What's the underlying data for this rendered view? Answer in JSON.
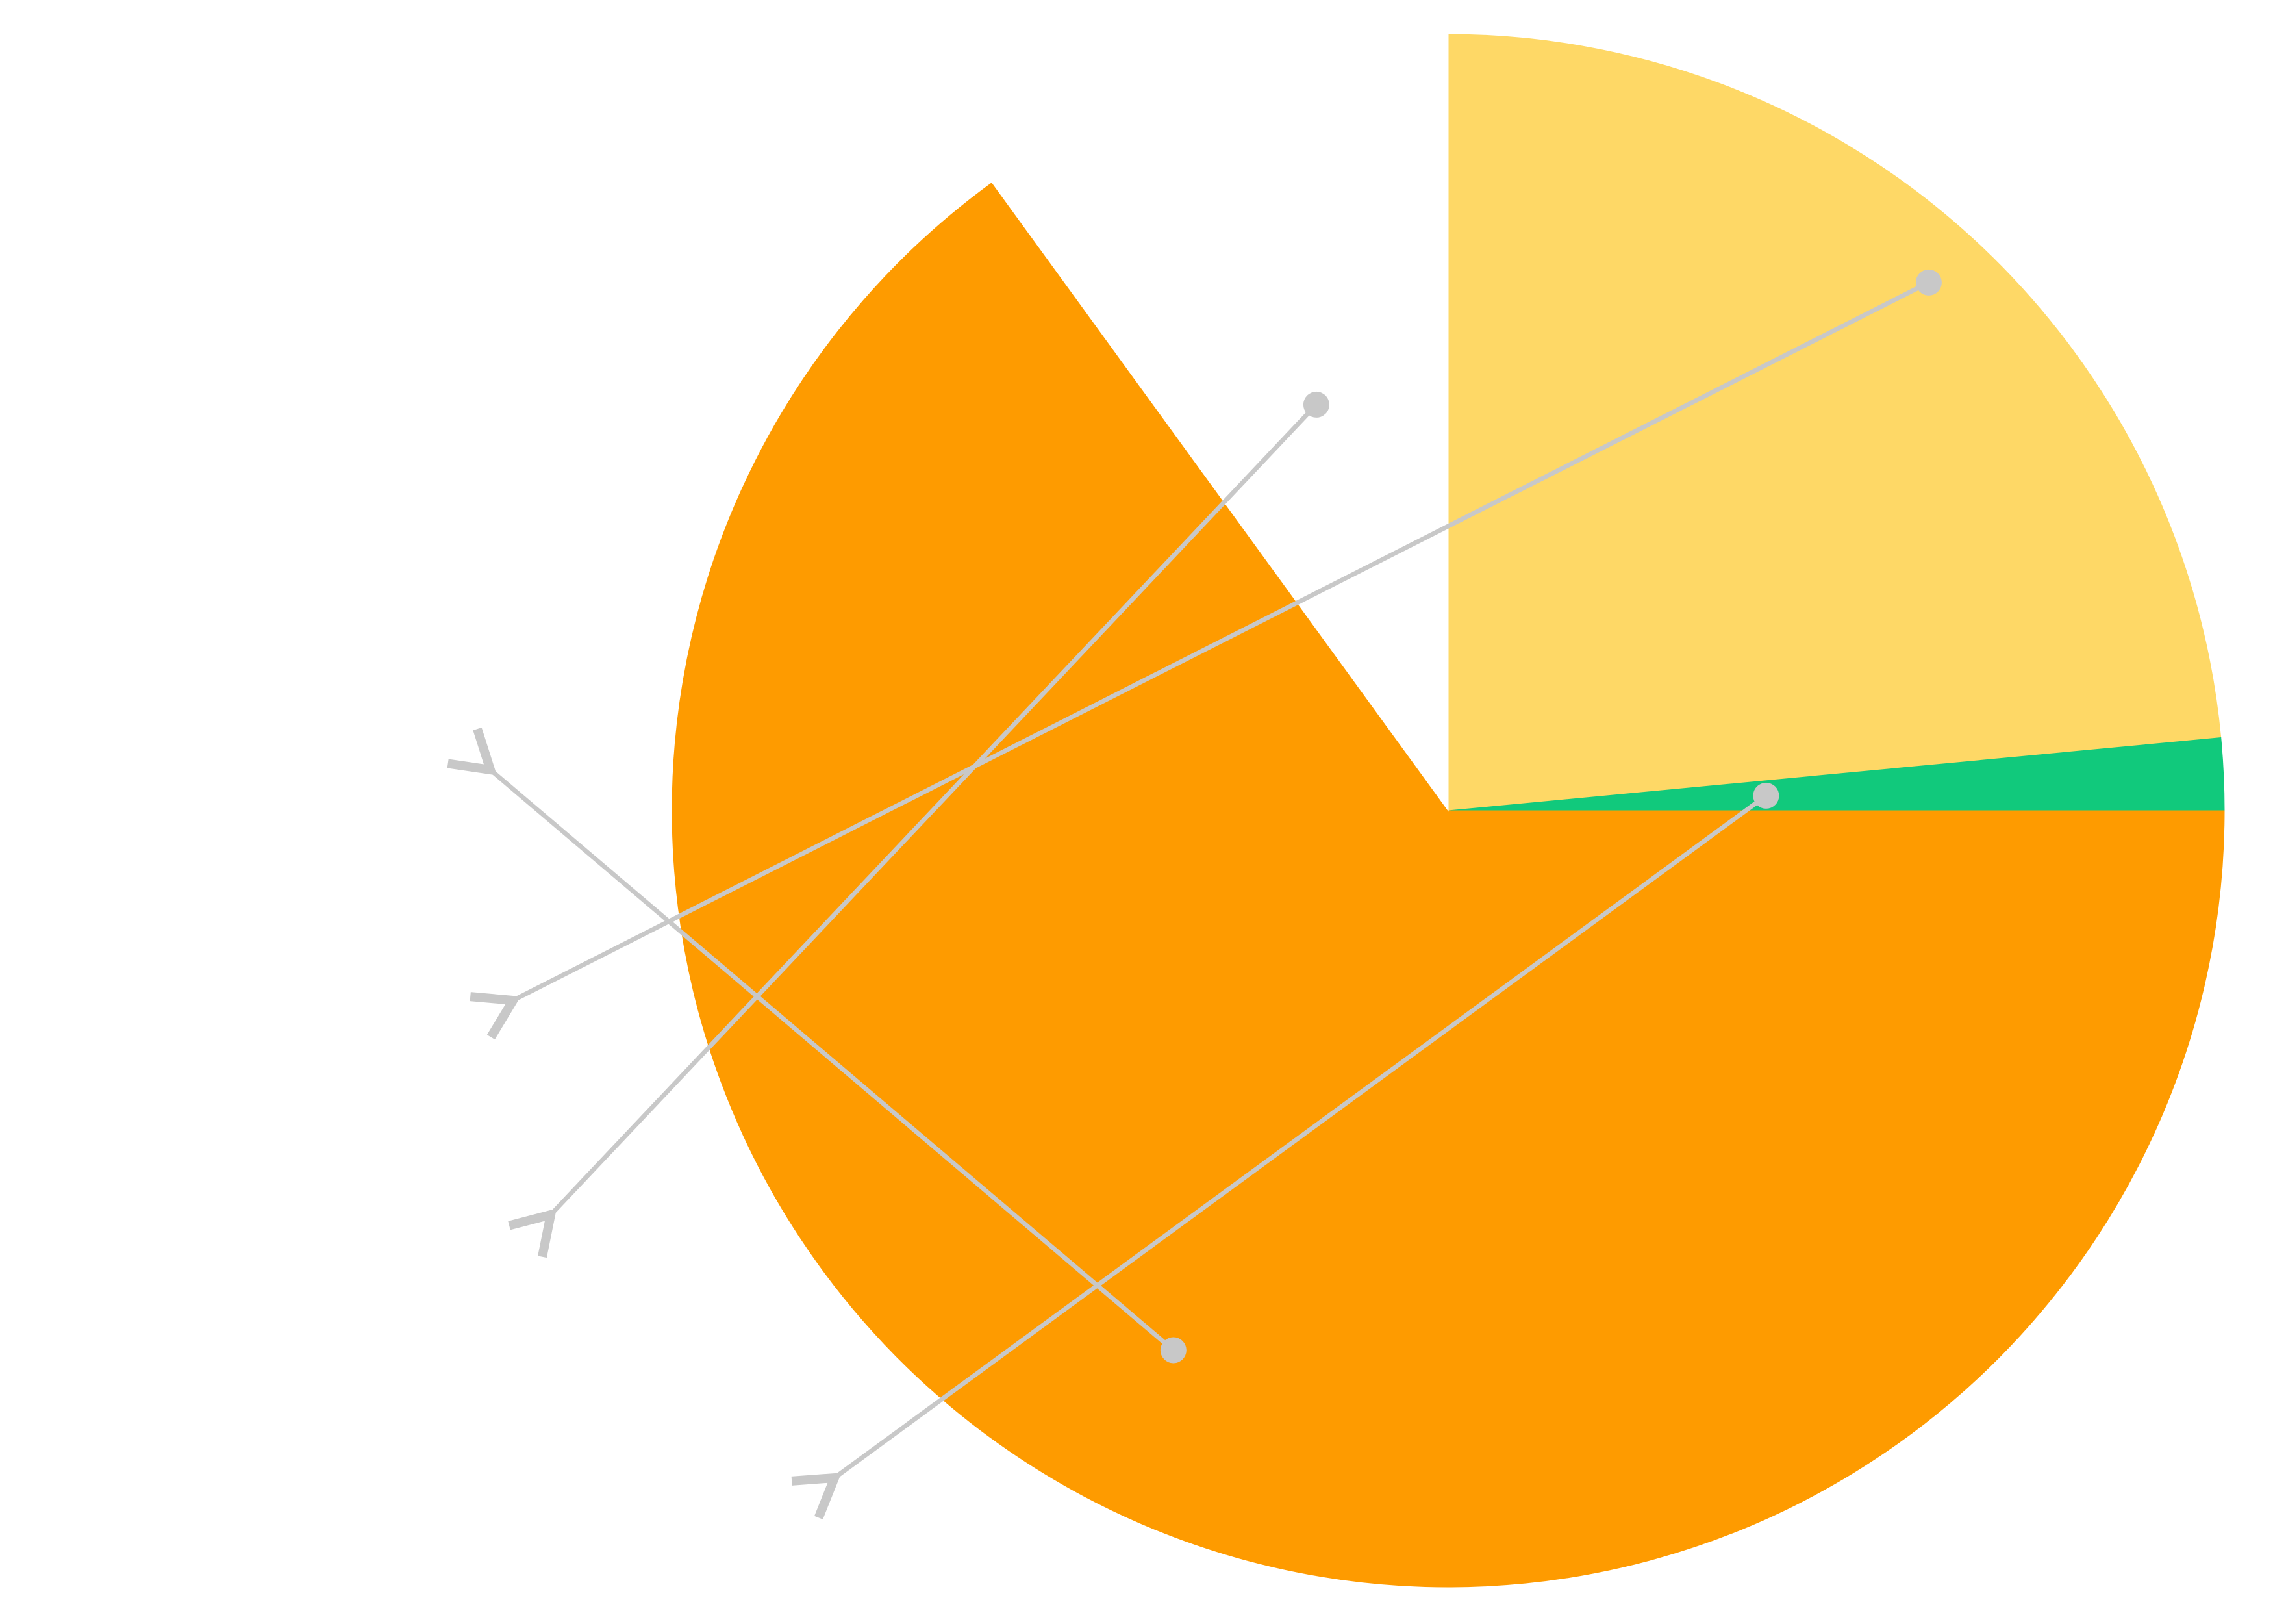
{
  "chart_data": {
    "type": "pie",
    "title": "",
    "start_angle_deg": 90,
    "direction": "clockwise",
    "slices": [
      {
        "label": "",
        "value": 23.5,
        "color": "#FED866"
      },
      {
        "label": "",
        "value": 1.5,
        "color": "#11C97C"
      },
      {
        "label": "",
        "value": 65.0,
        "color": "#FE9B00"
      },
      {
        "label": "",
        "value": 10.0,
        "color": "#FFFFFF"
      }
    ],
    "callouts": [
      {
        "slice_index": 2,
        "text": ""
      },
      {
        "slice_index": 0,
        "text": ""
      },
      {
        "slice_index": 3,
        "text": ""
      },
      {
        "slice_index": 1,
        "text": ""
      }
    ],
    "callout_color": "#C8C8C8"
  }
}
